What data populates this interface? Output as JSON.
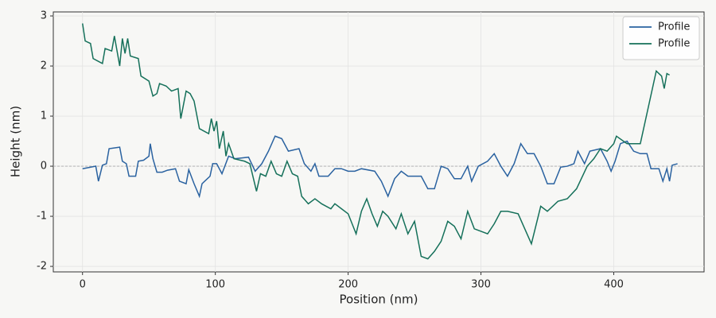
{
  "chart_data": {
    "type": "line",
    "xlabel": "Position (nm)",
    "ylabel": "Height (nm)",
    "xlim": [
      -22,
      468
    ],
    "ylim": [
      -2.11,
      3.08
    ],
    "xticks": [
      0,
      100,
      200,
      300,
      400
    ],
    "yticks": [
      -2,
      -1,
      0,
      1,
      2,
      3
    ],
    "grid": true,
    "legend": "upper right",
    "hline": 0,
    "series": [
      {
        "name": "Profile",
        "color": "#2a62a0",
        "x": [
          0,
          10,
          12,
          15,
          18,
          20,
          28,
          30,
          33,
          35,
          40,
          42,
          46,
          50,
          51,
          53,
          56,
          60,
          64,
          70,
          73,
          78,
          80,
          84,
          88,
          90,
          96,
          98,
          101,
          105,
          110,
          115,
          125,
          130,
          135,
          140,
          145,
          150,
          155,
          163,
          167,
          172,
          175,
          178,
          185,
          190,
          195,
          200,
          205,
          210,
          220,
          225,
          230,
          235,
          240,
          245,
          255,
          260,
          265,
          270,
          275,
          280,
          285,
          290,
          293,
          298,
          305,
          310,
          315,
          320,
          325,
          330,
          335,
          340,
          345,
          350,
          355,
          360,
          365,
          370,
          373,
          378,
          382,
          390,
          395,
          398,
          401,
          405,
          410,
          415,
          420,
          425,
          428,
          434,
          437,
          440,
          442,
          444,
          448
        ],
        "values": [
          -0.05,
          0.0,
          -0.3,
          0.02,
          0.05,
          0.35,
          0.38,
          0.1,
          0.05,
          -0.2,
          -0.2,
          0.1,
          0.12,
          0.2,
          0.45,
          0.15,
          -0.12,
          -0.12,
          -0.08,
          -0.05,
          -0.3,
          -0.35,
          -0.07,
          -0.35,
          -0.6,
          -0.35,
          -0.2,
          0.05,
          0.05,
          -0.15,
          0.2,
          0.15,
          0.18,
          -0.1,
          0.05,
          0.3,
          0.6,
          0.55,
          0.3,
          0.35,
          0.05,
          -0.1,
          0.05,
          -0.2,
          -0.2,
          -0.05,
          -0.05,
          -0.1,
          -0.1,
          -0.05,
          -0.1,
          -0.3,
          -0.6,
          -0.25,
          -0.1,
          -0.2,
          -0.2,
          -0.45,
          -0.45,
          0.0,
          -0.05,
          -0.25,
          -0.25,
          0.0,
          -0.3,
          0.0,
          0.1,
          0.25,
          0.0,
          -0.2,
          0.05,
          0.45,
          0.25,
          0.25,
          0.0,
          -0.35,
          -0.35,
          -0.02,
          0.0,
          0.05,
          0.3,
          0.05,
          0.3,
          0.35,
          0.1,
          -0.1,
          0.1,
          0.45,
          0.5,
          0.3,
          0.25,
          0.25,
          -0.05,
          -0.05,
          -0.3,
          -0.05,
          -0.3,
          0.02,
          0.05
        ]
      },
      {
        "name": "Profile",
        "color": "#15705a",
        "x": [
          0,
          2,
          6,
          8,
          15,
          17,
          22,
          24,
          28,
          30,
          32,
          34,
          36,
          42,
          44,
          50,
          53,
          56,
          58,
          63,
          67,
          72,
          74,
          78,
          81,
          84,
          88,
          95,
          97,
          99,
          101,
          103,
          106,
          108,
          110,
          114,
          122,
          126,
          131,
          134,
          138,
          142,
          146,
          150,
          154,
          158,
          162,
          165,
          170,
          175,
          180,
          187,
          190,
          195,
          200,
          206,
          210,
          214,
          218,
          222,
          226,
          230,
          236,
          240,
          245,
          250,
          255,
          260,
          265,
          270,
          275,
          280,
          285,
          290,
          295,
          305,
          310,
          315,
          320,
          328,
          333,
          338,
          345,
          350,
          358,
          365,
          372,
          380,
          385,
          390,
          395,
          400,
          402,
          410,
          420,
          432,
          436,
          438,
          440,
          442
        ],
        "values": [
          2.85,
          2.5,
          2.45,
          2.15,
          2.05,
          2.35,
          2.3,
          2.6,
          2.0,
          2.55,
          2.25,
          2.55,
          2.2,
          2.15,
          1.8,
          1.7,
          1.4,
          1.45,
          1.65,
          1.6,
          1.5,
          1.55,
          0.95,
          1.5,
          1.45,
          1.3,
          0.75,
          0.65,
          0.95,
          0.7,
          0.9,
          0.35,
          0.7,
          0.2,
          0.45,
          0.15,
          0.1,
          0.05,
          -0.5,
          -0.15,
          -0.2,
          0.1,
          -0.15,
          -0.2,
          0.1,
          -0.15,
          -0.2,
          -0.6,
          -0.75,
          -0.65,
          -0.75,
          -0.85,
          -0.75,
          -0.85,
          -0.95,
          -1.35,
          -0.9,
          -0.65,
          -0.95,
          -1.2,
          -0.9,
          -1.0,
          -1.25,
          -0.95,
          -1.35,
          -1.1,
          -1.8,
          -1.85,
          -1.7,
          -1.5,
          -1.1,
          -1.2,
          -1.45,
          -0.9,
          -1.25,
          -1.35,
          -1.15,
          -0.9,
          -0.9,
          -0.95,
          -1.25,
          -1.55,
          -0.8,
          -0.9,
          -0.7,
          -0.65,
          -0.45,
          0.0,
          0.15,
          0.35,
          0.3,
          0.45,
          0.6,
          0.45,
          0.45,
          1.9,
          1.8,
          1.55,
          1.85,
          1.82
        ]
      }
    ]
  }
}
